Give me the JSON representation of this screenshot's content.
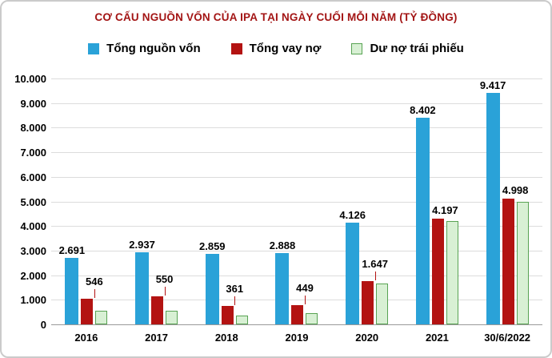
{
  "title": "CƠ CẤU NGUỒN VỐN CỦA IPA TẠI NGÀY CUỐI MỖI NĂM (TỶ ĐỒNG)",
  "colors": {
    "title": "#a31515",
    "bar_blue": "#2aa2d8",
    "bar_red": "#b31312",
    "bar_green_fill": "#d8f0d4",
    "bar_green_border": "#58a353",
    "gridline": "#dcdcdc",
    "axis": "#9a9a9a"
  },
  "legend": [
    {
      "label": "Tổng nguồn vốn",
      "fill": "#2aa2d8",
      "border": "#2aa2d8"
    },
    {
      "label": "Tổng vay nợ",
      "fill": "#b31312",
      "border": "#b31312"
    },
    {
      "label": "Dư nợ trái phiếu",
      "fill": "#d8f0d4",
      "border": "#58a353"
    }
  ],
  "chart_data": {
    "type": "bar",
    "title": "CƠ CẤU NGUỒN VỐN CỦA IPA TẠI NGÀY CUỐI MỖI NĂM (TỶ ĐỒNG)",
    "categories": [
      "2016",
      "2017",
      "2018",
      "2019",
      "2020",
      "2021",
      "30/6/2022"
    ],
    "series": [
      {
        "name": "Tổng nguồn vốn",
        "color": "#2aa2d8",
        "values": [
          2691,
          2937,
          2859,
          2888,
          4126,
          8402,
          9417
        ],
        "labels": [
          "2.691",
          "2.937",
          "2.859",
          "2.888",
          "4.126",
          "8.402",
          "9.417"
        ]
      },
      {
        "name": "Tổng vay nợ",
        "color": "#b31312",
        "values": [
          1040,
          1140,
          750,
          780,
          1750,
          4300,
          5100
        ],
        "labels": [
          "",
          "",
          "",
          "",
          "",
          "",
          ""
        ]
      },
      {
        "name": "Dư nợ trái phiếu",
        "color": "#d8f0d4",
        "border": "#58a353",
        "values": [
          546,
          550,
          361,
          449,
          1647,
          4197,
          4998
        ],
        "labels": [
          "546",
          "550",
          "361",
          "449",
          "1.647",
          "4.197",
          "4.998"
        ]
      }
    ],
    "ylim": [
      0,
      10000
    ],
    "ytick_step": 1000,
    "ytick_labels": [
      "0",
      "1.000",
      "2.000",
      "3.000",
      "4.000",
      "5.000",
      "6.000",
      "7.000",
      "8.000",
      "9.000",
      "10.000"
    ],
    "grid": true,
    "legend_position": "top"
  }
}
